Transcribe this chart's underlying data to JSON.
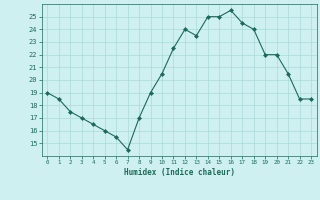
{
  "x": [
    0,
    1,
    2,
    3,
    4,
    5,
    6,
    7,
    8,
    9,
    10,
    11,
    12,
    13,
    14,
    15,
    16,
    17,
    18,
    19,
    20,
    21,
    22,
    23
  ],
  "y": [
    19,
    18.5,
    17.5,
    17,
    16.5,
    16,
    15.5,
    14.5,
    17,
    19,
    20.5,
    22.5,
    24,
    23.5,
    25,
    25,
    25.5,
    24.5,
    24,
    22,
    22,
    20.5,
    18.5,
    18.5
  ],
  "xlabel": "Humidex (Indice chaleur)",
  "xlim": [
    -0.5,
    23.5
  ],
  "ylim": [
    14,
    26
  ],
  "yticks": [
    15,
    16,
    17,
    18,
    19,
    20,
    21,
    22,
    23,
    24,
    25
  ],
  "xticks": [
    0,
    1,
    2,
    3,
    4,
    5,
    6,
    7,
    8,
    9,
    10,
    11,
    12,
    13,
    14,
    15,
    16,
    17,
    18,
    19,
    20,
    21,
    22,
    23
  ],
  "line_color": "#1a6b5a",
  "marker": "D",
  "marker_size": 2,
  "bg_color": "#cff0f0",
  "grid_color": "#aadada",
  "label_color": "#1a6b5a",
  "tick_color": "#1a6b5a"
}
